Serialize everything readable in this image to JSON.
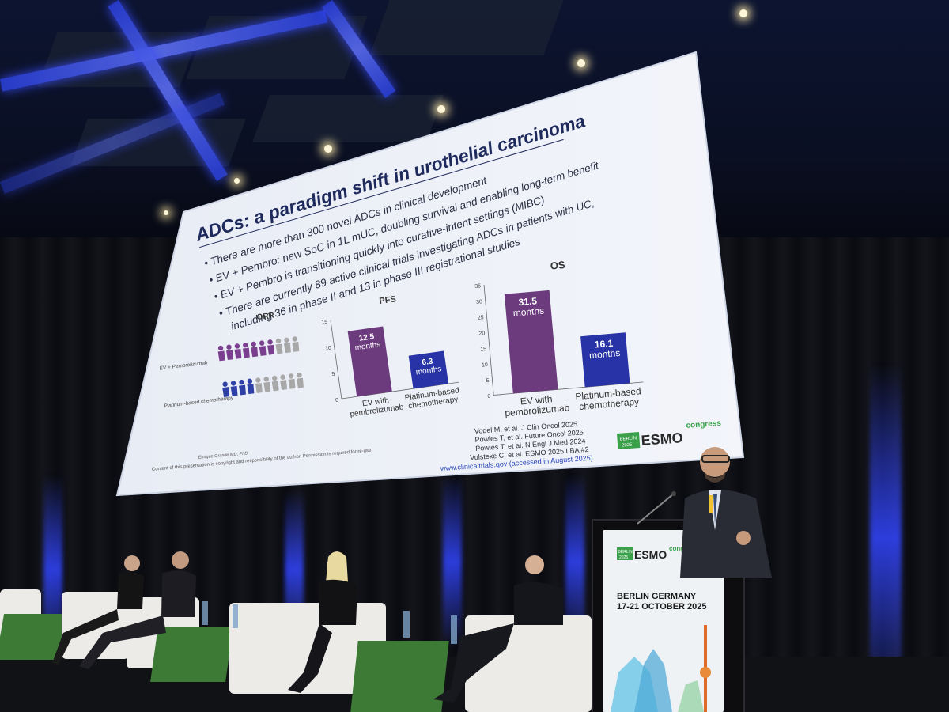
{
  "slide": {
    "title": "ADCs: a paradigm shift in urothelial carcinoma",
    "bullets": [
      "There are more than 300 novel ADCs in clinical development",
      "EV + Pembro: new SoC in 1L mUC, doubling survival and enabling long-term benefit",
      "EV + Pembro is transitioning quickly into curative-intent settings (MIBC)",
      "There are currently 89 active clinical trials investigating ADCs in patients with UC,",
      "including 36 in phase II and 13 in phase III registrational studies"
    ],
    "orr": {
      "title": "ORR",
      "rows": [
        {
          "label": "EV + Pembrolizumab",
          "filled": 7,
          "total": 10,
          "color": "#7a3f8e"
        },
        {
          "label": "Platinum-based chemotherapy",
          "filled": 4,
          "total": 10,
          "color": "#2f3fa8"
        }
      ]
    },
    "charts": [
      {
        "name": "PFS",
        "chart_data": {
          "type": "bar",
          "title": "PFS",
          "categories": [
            "EV with pembrolizumab",
            "Platinum-based chemotherapy"
          ],
          "values": [
            12.5,
            6.3
          ],
          "bar_labels": [
            "12.5 months",
            "6.3 months"
          ],
          "ylim": [
            0,
            15
          ],
          "yticks": [
            "15",
            "10",
            "5",
            "0"
          ],
          "colors": [
            "#6b3b7e",
            "#2733a6"
          ]
        }
      },
      {
        "name": "OS",
        "chart_data": {
          "type": "bar",
          "title": "OS",
          "categories": [
            "EV with pembrolizumab",
            "Platinum-based chemotherapy"
          ],
          "values": [
            31.5,
            16.1
          ],
          "bar_labels": [
            "31.5 months",
            "16.1 months"
          ],
          "ylim": [
            0,
            35
          ],
          "yticks": [
            "35",
            "30",
            "25",
            "20",
            "15",
            "10",
            "5",
            "0"
          ],
          "colors": [
            "#6b3b7e",
            "#2733a6"
          ]
        }
      }
    ],
    "references": [
      "Vogel M, et al. J Clin Oncol 2025",
      "Powles T, et al. Future Oncol 2025",
      "Powles T, et al. N Engl J Med 2024",
      "Vulsteke C, et al. ESMO 2025 LBA #2",
      "www.clinicaltrials.gov (accessed in August 2025)"
    ],
    "presenter": "Enrique Grande MD, PhD",
    "copyright": "Content of this presentation is copyright and responsibility of the author. Permission is required for re-use.",
    "logo": {
      "city": "BERLIN",
      "year": "2025",
      "brand": "ESMO",
      "tag": "congress"
    }
  },
  "podium": {
    "logo": {
      "city": "BERLIN",
      "year": "2025",
      "brand": "ESMO",
      "tag": "congress"
    },
    "location": "BERLIN GERMANY",
    "dates": "17-21 OCTOBER 2025"
  }
}
